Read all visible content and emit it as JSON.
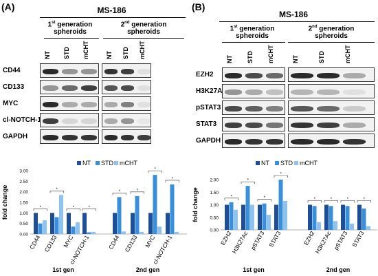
{
  "panel_a": {
    "label": "(A)",
    "cell_line": "MS-186",
    "group1": {
      "sup": "st",
      "pre": "1",
      "post": " generation",
      "line2": "spheroids"
    },
    "group2": {
      "sup": "nd",
      "pre": "2",
      "post": " generation",
      "line2": "spheroids"
    },
    "lanes": [
      "NT",
      "STD",
      "mCHT"
    ],
    "proteins": [
      "CD44",
      "CD133",
      "MYC",
      "cl-NOTCH-1",
      "GAPDH"
    ]
  },
  "panel_b": {
    "label": "(B)",
    "cell_line": "MS-186",
    "group1": {
      "sup": "st",
      "pre": "1",
      "post": " generation",
      "line2": "spheroids"
    },
    "group2": {
      "sup": "nd",
      "pre": "2",
      "post": " generation",
      "line2": "spheroids"
    },
    "lanes": [
      "NT",
      "STD",
      "mCHT"
    ],
    "proteins": [
      "EZH2",
      "H3K27AC",
      "pSTAT3",
      "STAT3",
      "GAPDH"
    ]
  },
  "chart_data": [
    {
      "type": "bar",
      "ylabel": "fold change",
      "ylim": [
        0,
        3.0
      ],
      "yticks": [
        "0.00",
        "0.50",
        "1.00",
        "1.50",
        "2.00",
        "2.50",
        "3.00"
      ],
      "legend_position": "top",
      "groups": [
        "1st gen",
        "2nd gen"
      ],
      "categories": [
        "CD44",
        "CD133",
        "MYC",
        "cl-NOTCH-1",
        "CD44",
        "CD133",
        "MYC",
        "cl-NOTCH-1"
      ],
      "series": [
        {
          "name": "NT",
          "color": "#1f4e99",
          "values": [
            1.0,
            1.0,
            1.0,
            1.0,
            1.0,
            1.0,
            1.0,
            1.0
          ]
        },
        {
          "name": "STD",
          "color": "#3a8fdc",
          "values": [
            0.5,
            0.8,
            0.35,
            0.08,
            1.75,
            1.8,
            2.8,
            2.35
          ]
        },
        {
          "name": "mCHT",
          "color": "#8fc3ee",
          "values": [
            0.65,
            1.85,
            0.55,
            0.1,
            0.12,
            0.1,
            0.35,
            0.1
          ]
        }
      ]
    },
    {
      "type": "bar",
      "ylabel": "fold change",
      "ylim": [
        0,
        2.0
      ],
      "yticks": [
        "0.00",
        "0.50",
        "1.00",
        "1.50",
        "2.00"
      ],
      "legend_position": "top",
      "groups": [
        "1st gen",
        "2nd gen"
      ],
      "categories": [
        "EZH2",
        "H3K27Ac",
        "pSTAT3",
        "STAT3",
        "EZH2",
        "H3K27Ac",
        "pSTAT3",
        "STAT3"
      ],
      "series": [
        {
          "name": "NT",
          "color": "#1f4e99",
          "values": [
            1.0,
            1.0,
            1.0,
            1.0,
            1.0,
            1.0,
            1.0,
            1.0
          ]
        },
        {
          "name": "STD",
          "color": "#3a8fdc",
          "values": [
            1.1,
            1.75,
            1.05,
            2.0,
            0.95,
            0.95,
            0.95,
            0.85
          ]
        },
        {
          "name": "mCHT",
          "color": "#8fc3ee",
          "values": [
            0.8,
            1.0,
            0.6,
            1.15,
            0.3,
            0.35,
            0.25,
            0.15
          ]
        }
      ]
    }
  ]
}
